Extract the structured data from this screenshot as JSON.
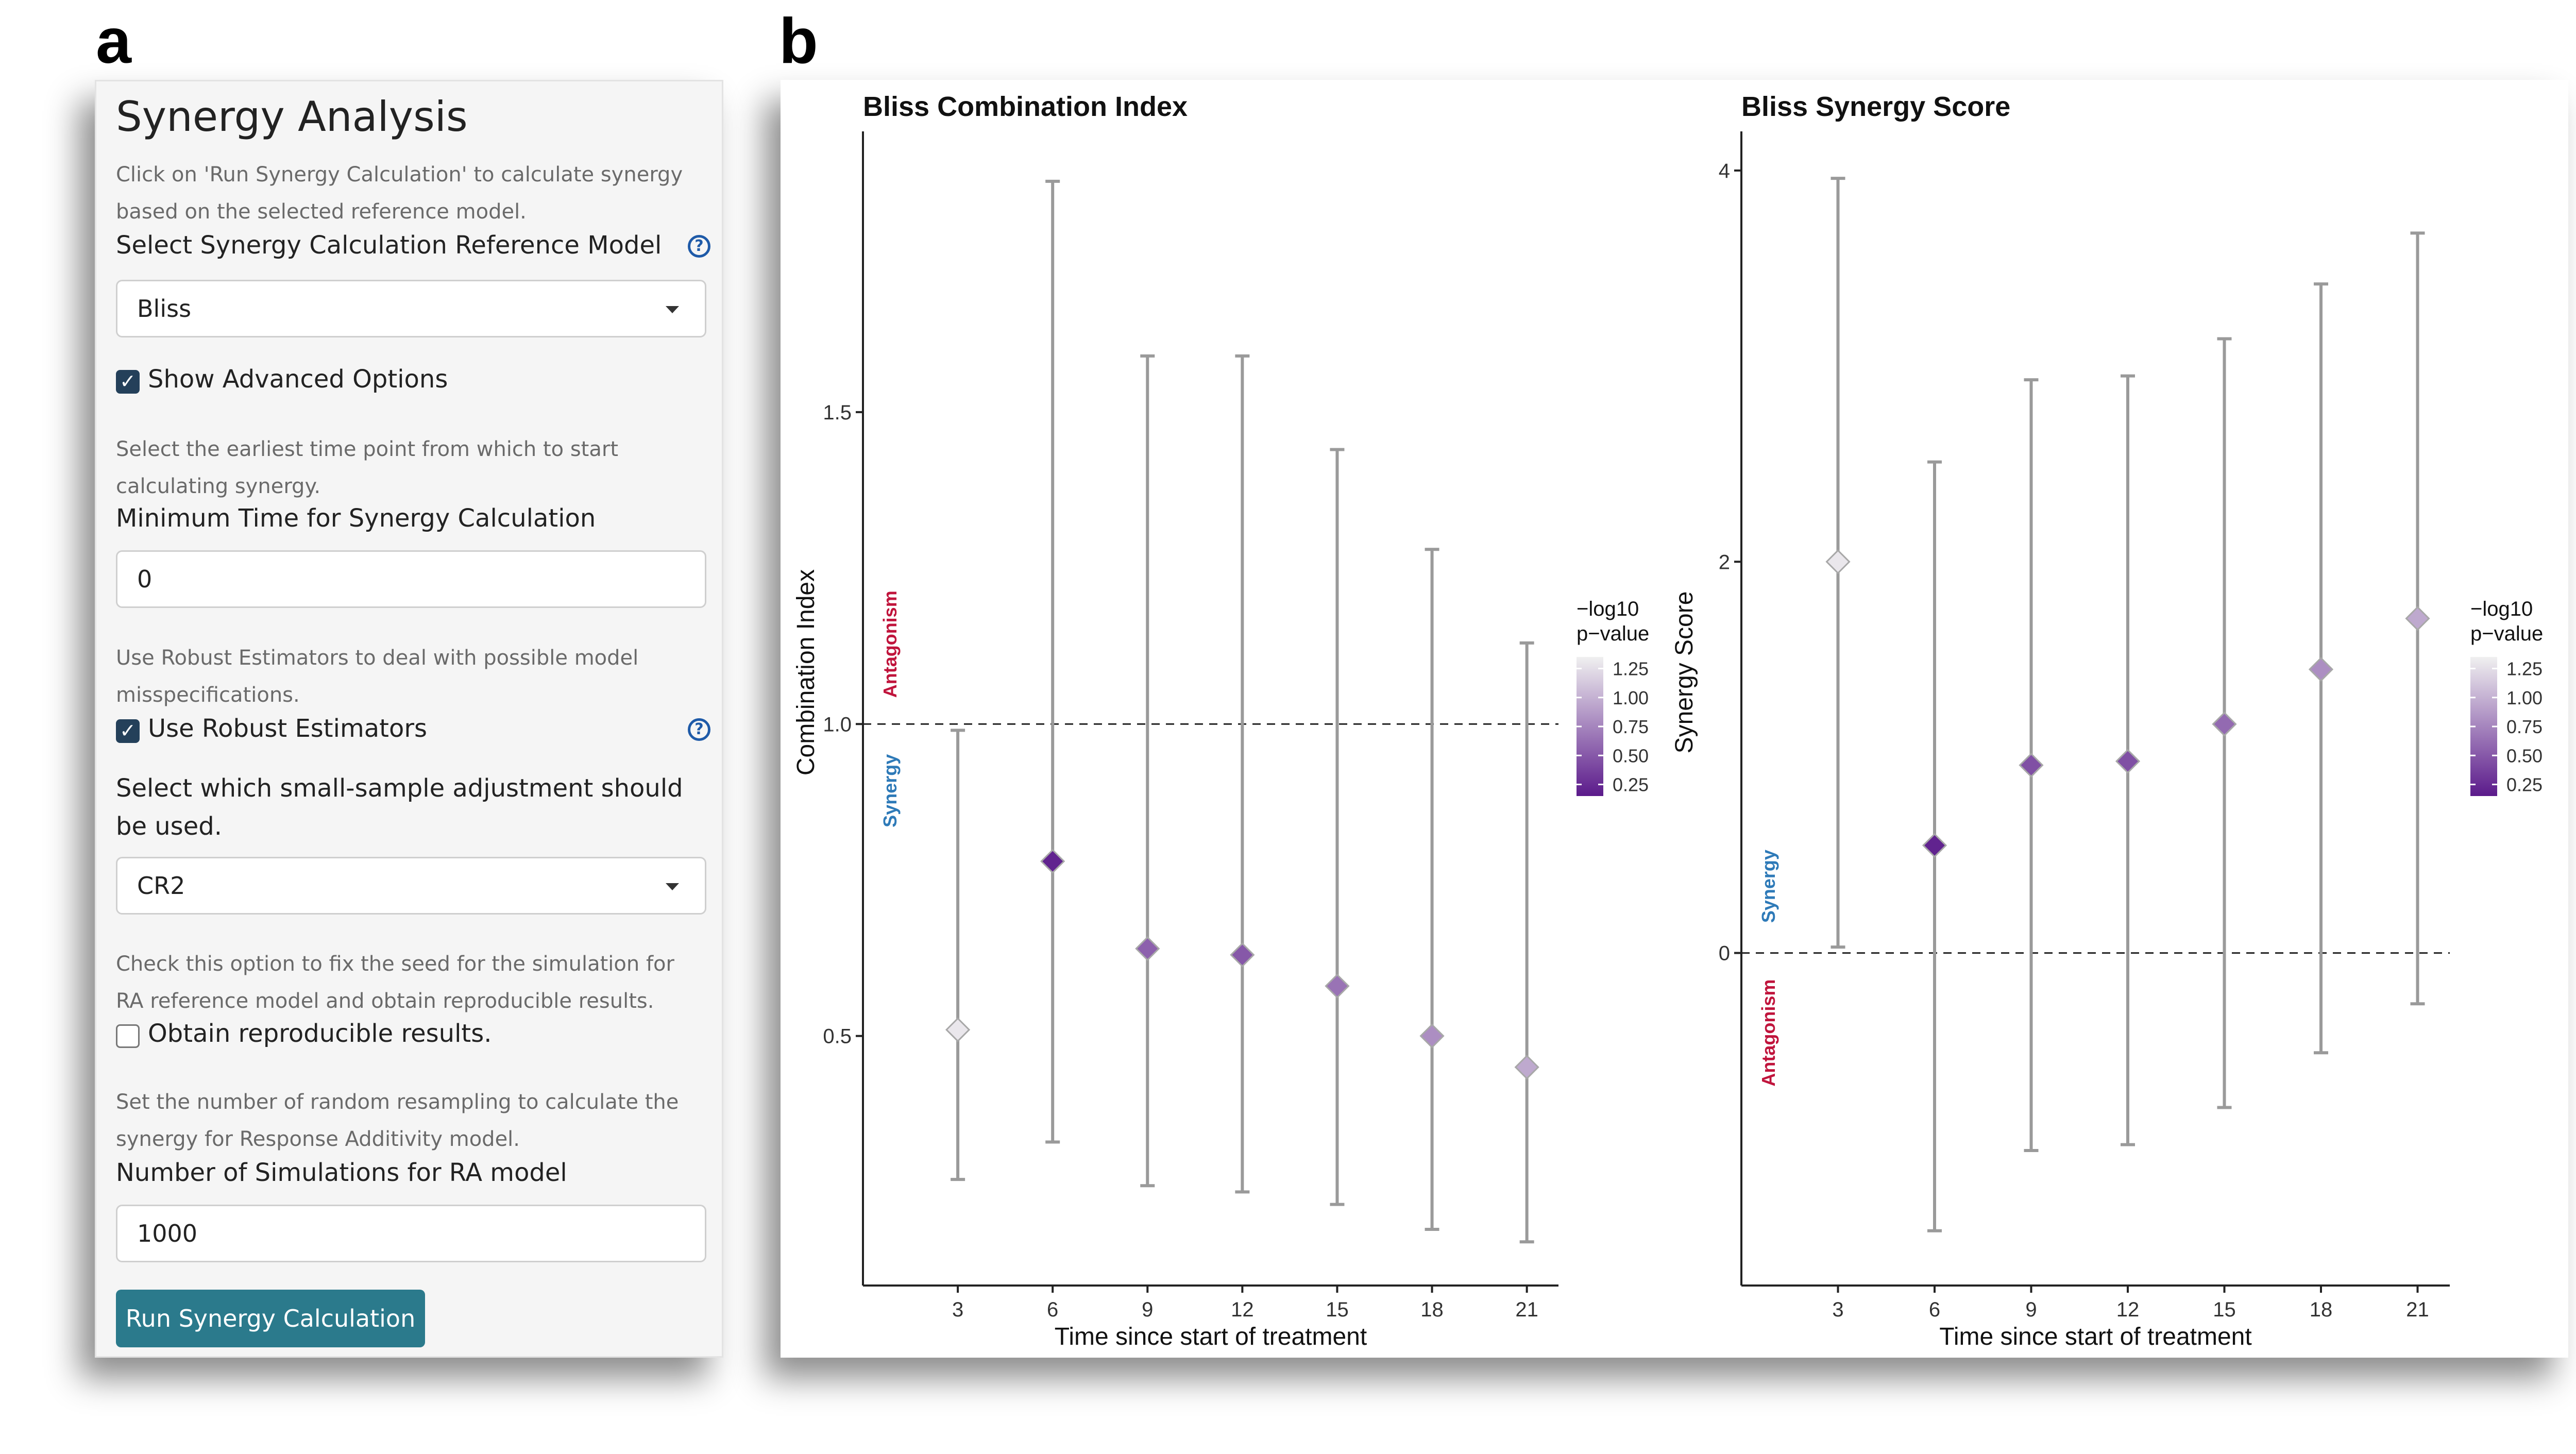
{
  "labels": {
    "a": "a",
    "b": "b"
  },
  "sidebar": {
    "title": "Synergy Analysis",
    "help_run": "Click on 'Run Synergy Calculation' to calculate synergy based on the selected reference model.",
    "ref_model_label": "Select Synergy Calculation Reference Model",
    "ref_model_value": "Bliss",
    "show_advanced_label": "Show Advanced Options",
    "show_advanced_checked": true,
    "help_min_time": "Select the earliest time point from which to start calculating synergy.",
    "min_time_label": "Minimum Time for Synergy Calculation",
    "min_time_value": "0",
    "help_robust": "Use Robust Estimators to deal with possible model misspecifications.",
    "robust_label": "Use Robust Estimators",
    "robust_checked": true,
    "adjustment_label": "Select which small-sample adjustment should be used.",
    "adjustment_value": "CR2",
    "help_seed": "Check this option to fix the seed for the simulation for RA reference model and obtain reproducible results.",
    "reproducible_label": "Obtain reproducible results.",
    "reproducible_checked": false,
    "help_nsim": "Set the number of random resampling to calculate the synergy for Response Additivity model.",
    "nsim_label": "Number of Simulations for RA model",
    "nsim_value": "1000",
    "run_button": "Run Synergy Calculation",
    "colors": {
      "button": "#2b7a8c",
      "check": "#24405a",
      "help_icon": "#1e5aa8"
    }
  },
  "chart_data": [
    {
      "type": "scatter",
      "title": "Bliss Combination Index",
      "xlabel": "Time since start of treatment",
      "ylabel": "Combination Index",
      "x": [
        3,
        6,
        9,
        12,
        15,
        18,
        21
      ],
      "y": [
        0.51,
        0.78,
        0.64,
        0.63,
        0.58,
        0.5,
        0.45
      ],
      "lower": [
        0.27,
        0.33,
        0.26,
        0.25,
        0.23,
        0.19,
        0.17
      ],
      "upper": [
        0.99,
        1.87,
        1.59,
        1.59,
        1.44,
        1.28,
        1.13
      ],
      "neglog10_p": [
        1.3,
        0.2,
        0.55,
        0.5,
        0.65,
        0.8,
        0.95
      ],
      "xticks": [
        3,
        6,
        9,
        12,
        15,
        18,
        21
      ],
      "yticks": [
        "0.5",
        "1.0",
        "1.5"
      ],
      "yticks_values": [
        0.5,
        1.0,
        1.5
      ],
      "xlim": [
        0,
        22
      ],
      "ylim": [
        0.1,
        1.95
      ],
      "reference_line": 1.0,
      "annotations": {
        "above": "Antagonism",
        "below": "Synergy"
      },
      "legend": {
        "title": [
          "−log10",
          "p−value"
        ],
        "ticks": [
          "1.25",
          "1.00",
          "0.75",
          "0.50",
          "0.25"
        ],
        "tick_values": [
          1.25,
          1.0,
          0.75,
          0.5,
          0.25
        ],
        "range": [
          0.15,
          1.35
        ]
      },
      "grid": false
    },
    {
      "type": "scatter",
      "title": "Bliss Synergy Score",
      "xlabel": "Time since start of treatment",
      "ylabel": "Synergy Score",
      "x": [
        3,
        6,
        9,
        12,
        15,
        18,
        21
      ],
      "y": [
        2.0,
        0.55,
        0.96,
        0.98,
        1.17,
        1.45,
        1.71
      ],
      "lower": [
        0.03,
        -1.42,
        -1.01,
        -0.98,
        -0.79,
        -0.51,
        -0.26
      ],
      "upper": [
        3.96,
        2.51,
        2.93,
        2.95,
        3.14,
        3.42,
        3.68
      ],
      "neglog10_p": [
        1.3,
        0.2,
        0.45,
        0.45,
        0.6,
        0.8,
        0.95
      ],
      "xticks": [
        3,
        6,
        9,
        12,
        15,
        18,
        21
      ],
      "yticks": [
        "0",
        "2",
        "4"
      ],
      "yticks_values": [
        0,
        2,
        4
      ],
      "xlim": [
        0,
        22
      ],
      "ylim": [
        -1.7,
        4.2
      ],
      "reference_line": 0,
      "annotations": {
        "above": "Synergy",
        "below": "Antagonism"
      },
      "legend": {
        "title": [
          "−log10",
          "p−value"
        ],
        "ticks": [
          "1.25",
          "1.00",
          "0.75",
          "0.50",
          "0.25"
        ],
        "tick_values": [
          1.25,
          1.0,
          0.75,
          0.5,
          0.25
        ],
        "range": [
          0.15,
          1.35
        ]
      },
      "grid": false
    }
  ],
  "colors": {
    "low_p": "#5b1a8b",
    "high_p": "#f0f0f0",
    "errorbar": "#9a9a9a",
    "synergy_text": "#2e7ab8",
    "antagonism_text": "#c0143c"
  }
}
